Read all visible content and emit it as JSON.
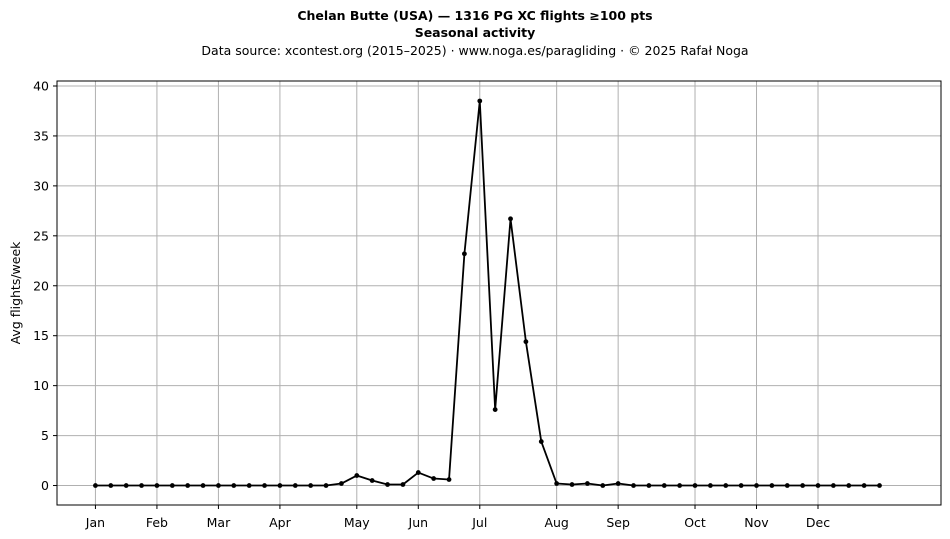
{
  "chart_data": {
    "type": "line",
    "title": "Chelan Butte (USA)  —  1316 PG XC flights ≥100 pts",
    "subtitle": "Seasonal activity",
    "source": "Data source: xcontest.org (2015–2025)  ·  www.noga.es/paragliding  ·  © 2025 Rafał Noga",
    "xlabel": "",
    "ylabel": "Avg flights/week",
    "grid": true,
    "line_color": "#000000",
    "grid_color": "#b0b0b0",
    "ylim": [
      -1.95,
      40.5
    ],
    "xlim": [
      -2.5,
      55
    ],
    "yticks": [
      0,
      5,
      10,
      15,
      20,
      25,
      30,
      35,
      40
    ],
    "xticks": [
      {
        "label": "Jan",
        "x": 0
      },
      {
        "label": "Feb",
        "x": 4
      },
      {
        "label": "Mar",
        "x": 8
      },
      {
        "label": "Apr",
        "x": 12
      },
      {
        "label": "May",
        "x": 17
      },
      {
        "label": "Jun",
        "x": 21
      },
      {
        "label": "Jul",
        "x": 25
      },
      {
        "label": "Aug",
        "x": 30
      },
      {
        "label": "Sep",
        "x": 34
      },
      {
        "label": "Oct",
        "x": 39
      },
      {
        "label": "Nov",
        "x": 43
      },
      {
        "label": "Dec",
        "x": 47
      }
    ],
    "series": [
      {
        "values": [
          0,
          0,
          0,
          0,
          0,
          0,
          0,
          0,
          0,
          0,
          0,
          0,
          0,
          0,
          0,
          0,
          0.2,
          1.0,
          0.5,
          0.1,
          0.1,
          1.3,
          0.7,
          0.6,
          23.2,
          38.5,
          7.6,
          26.7,
          14.4,
          4.4,
          0.2,
          0.1,
          0.2,
          0.0,
          0.2,
          0,
          0,
          0,
          0,
          0,
          0,
          0,
          0,
          0,
          0,
          0,
          0,
          0,
          0,
          0,
          0,
          0
        ]
      }
    ]
  }
}
